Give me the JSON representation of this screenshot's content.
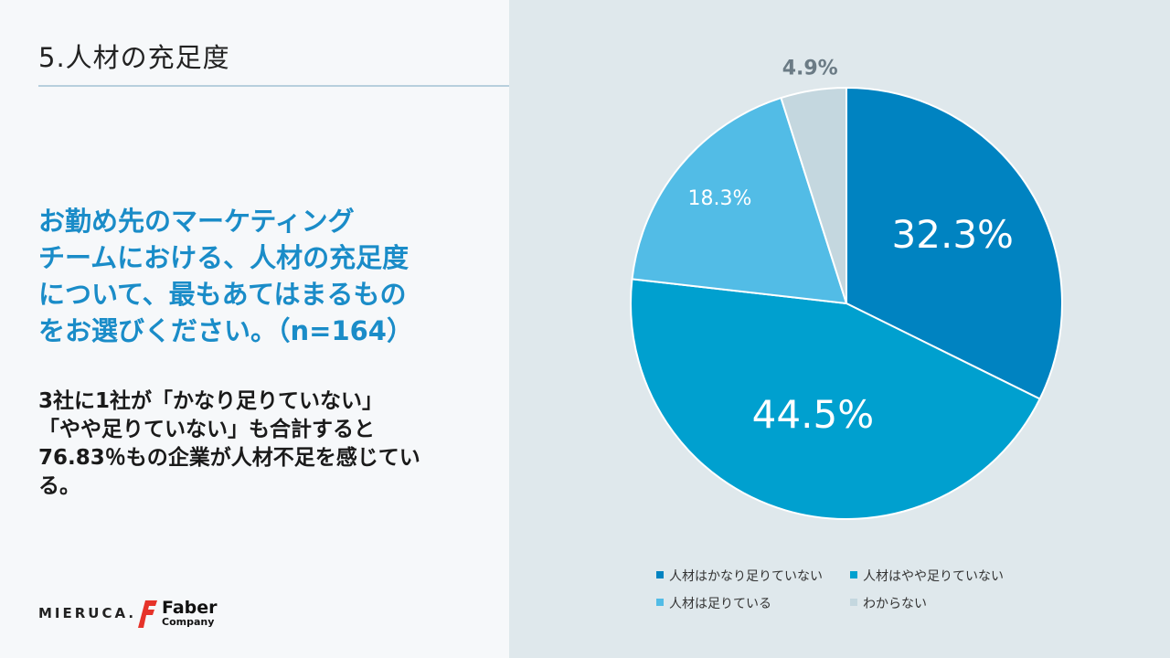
{
  "slide": {
    "title": "5.人材の充足度",
    "question_lines": [
      "お勤め先のマーケティング",
      "チームにおける、人材の充足度",
      "について、最もあてはまるもの",
      "をお選びください。（n=164）"
    ],
    "summary_lines": [
      "3社に1社が「かなり足りていない」",
      "「やや足りていない」も合計すると",
      "76.83％もの企業が人材不足を感じてい",
      "る。"
    ]
  },
  "logos": {
    "mieruca": "MIERUCA.",
    "faber_name": "Faber",
    "faber_sub": "Company"
  },
  "chart_data": {
    "type": "pie",
    "title": "",
    "slices": [
      {
        "label": "人材はかなり足りていない",
        "value": 32.3,
        "display": "32.3%",
        "color": "#0083c1"
      },
      {
        "label": "人材はやや足りていない",
        "value": 44.5,
        "display": "44.5%",
        "color": "#00a0cf"
      },
      {
        "label": "人材は足りている",
        "value": 18.3,
        "display": "18.3%",
        "color": "#52bce6"
      },
      {
        "label": "わからない",
        "value": 4.9,
        "display": "4.9%",
        "color": "#c4d7df"
      }
    ],
    "start_angle_deg": 0,
    "direction": "clockwise",
    "legend_position": "bottom"
  }
}
